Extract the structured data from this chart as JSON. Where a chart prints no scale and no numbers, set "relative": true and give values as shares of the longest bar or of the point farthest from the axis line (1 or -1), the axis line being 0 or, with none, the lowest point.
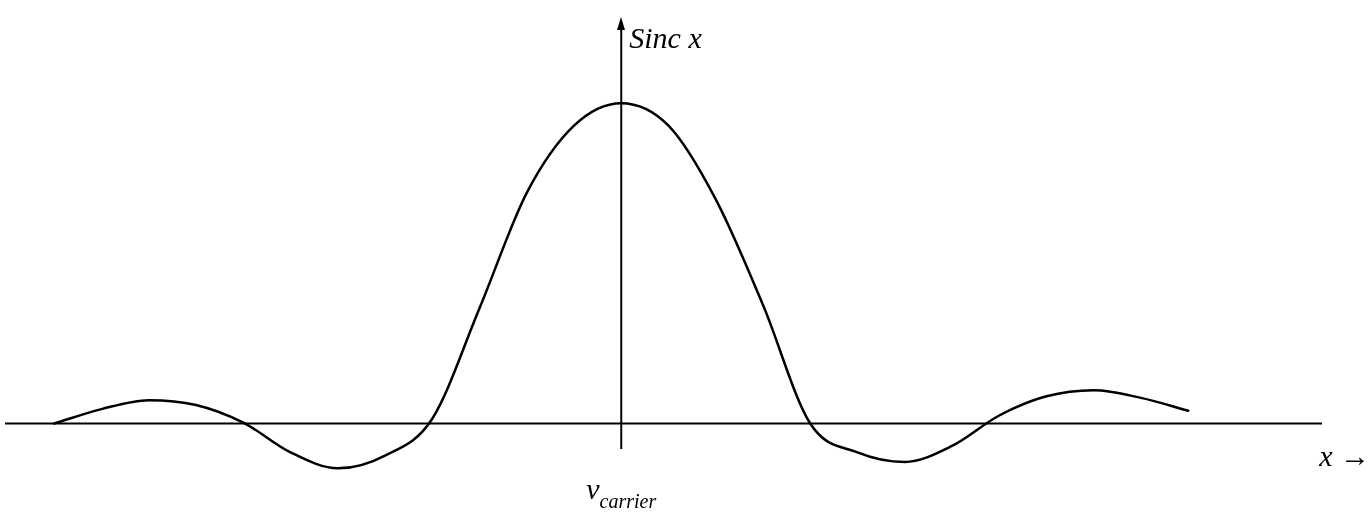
{
  "chart_data": {
    "type": "line",
    "relative": true,
    "ylabel": "Sinc x",
    "xlabel": "x →",
    "categories": [
      null,
      null,
      null,
      null,
      null,
      null,
      null,
      null,
      null,
      null,
      null,
      null,
      null,
      null,
      null,
      null,
      null,
      null,
      null,
      null,
      null,
      null,
      null,
      null,
      null,
      null,
      null,
      null,
      null
    ],
    "series": [
      {
        "color": "#000000",
        "values": [
          null,
          0,
          0.045,
          0.073,
          0.058,
          0.003,
          -0.09,
          -0.14,
          -0.1,
          0.015,
          0.36,
          0.72,
          0.93,
          1,
          0.93,
          0.7,
          0.37,
          0,
          -0.09,
          -0.12,
          -0.07,
          0.025,
          0.085,
          0.104,
          0.08,
          0.04,
          null,
          null,
          null
        ]
      }
    ],
    "annotations": [
      "ν$_{carrier}$"
    ],
    "legend": false,
    "marker": "none",
    "line_style": "solid"
  }
}
